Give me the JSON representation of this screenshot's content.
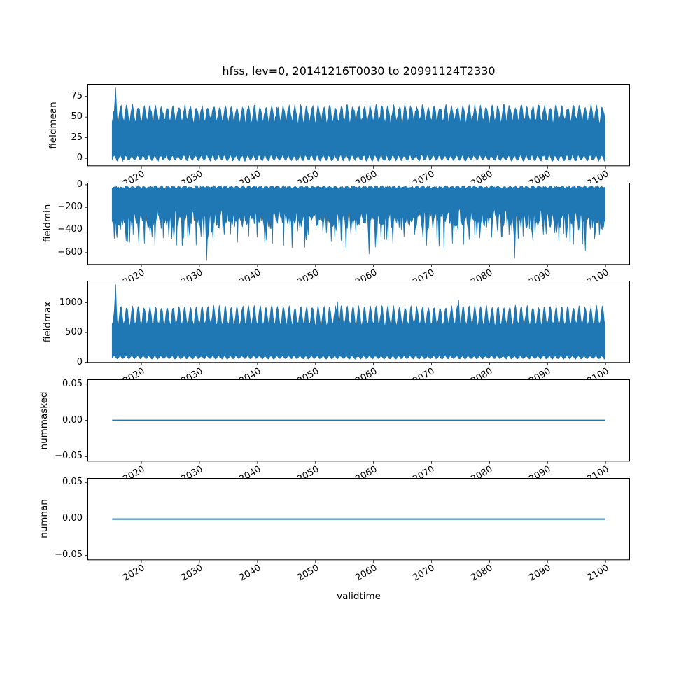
{
  "chart_data": {
    "type": "line",
    "title": "hfss, lev=0, 20141216T0030 to 20991124T2330",
    "xlabel": "validtime",
    "line_color": "#1f77b4",
    "axes_background": "#ffffff",
    "text_color": "#000000",
    "grid": false,
    "legend": false,
    "x_start": 2014.96,
    "x_end": 2099.9,
    "xlim": [
      2010.7,
      2104.2
    ],
    "xticks": [
      2020,
      2030,
      2040,
      2050,
      2060,
      2070,
      2080,
      2090,
      2100
    ],
    "xtick_labels": [
      "2020",
      "2030",
      "2040",
      "2050",
      "2060",
      "2070",
      "2080",
      "2090",
      "2100"
    ],
    "xtick_rotation_deg": 30,
    "subplots": [
      {
        "ylabel": "fieldmean",
        "yticks": [
          {
            "v": 75,
            "label": "75"
          },
          {
            "v": 50,
            "label": "50"
          },
          {
            "v": 25,
            "label": "25"
          },
          {
            "v": 0,
            "label": "0"
          }
        ],
        "ylim": [
          -9.5,
          90
        ],
        "kind": "band",
        "band": {
          "top_valley": 44,
          "top_peak": 63,
          "top_pow": 1.6,
          "top_noise": 3,
          "bot_valley": -2.5,
          "bot_peak": 3.5,
          "bot_pow": 2.2,
          "bot_noise": 1.2,
          "period_years": 1,
          "seed": 11
        },
        "spikes": [
          {
            "x": 2015.6,
            "v": 85.5
          }
        ],
        "summary": "Dense sub-daily oscillation between ~0 and a seasonal envelope of ~44-66; isolated spike to ~85 near the start of the record."
      },
      {
        "ylabel": "fieldmin",
        "yticks": [
          {
            "v": 0,
            "label": "0"
          },
          {
            "v": -200,
            "label": "−200"
          },
          {
            "v": -400,
            "label": "−400"
          },
          {
            "v": -600,
            "label": "−600"
          }
        ],
        "ylim": [
          -708,
          18
        ],
        "kind": "band",
        "band": {
          "top_valley": -32,
          "top_peak": -14,
          "top_pow": 1,
          "top_noise": 8,
          "bot_valley": -250,
          "bot_peak": -345,
          "bot_pow": 1,
          "bot_noise": 55,
          "period_years": 1,
          "seed": 22,
          "spike_prob": 0.2,
          "spike_min": 60,
          "spike_max": 220
        },
        "spikes": [
          {
            "x": 2019.6,
            "v": -520
          },
          {
            "x": 2031.2,
            "v": -672
          },
          {
            "x": 2046.0,
            "v": -560
          },
          {
            "x": 2059.2,
            "v": -615
          },
          {
            "x": 2084.3,
            "v": -652
          },
          {
            "x": 2096.5,
            "v": -585
          }
        ],
        "summary": "Field minimum: solid band from ~-15 down to ~-300 with frequent negative spikes to -400..-550 and occasional extremes near -650..-680."
      },
      {
        "ylabel": "fieldmax",
        "yticks": [
          {
            "v": 1000,
            "label": "1000"
          },
          {
            "v": 500,
            "label": "500"
          },
          {
            "v": 0,
            "label": "0"
          }
        ],
        "ylim": [
          -8,
          1372
        ],
        "kind": "band",
        "band": {
          "top_valley": 640,
          "top_peak": 935,
          "top_pow": 2.4,
          "top_noise": 28,
          "bot_valley": 58,
          "bot_peak": 108,
          "bot_pow": 2.0,
          "bot_noise": 8,
          "period_years": 1,
          "seed": 33
        },
        "spikes": [
          {
            "x": 2015.6,
            "v": 1310
          },
          {
            "x": 2053.8,
            "v": 1020
          },
          {
            "x": 2074.7,
            "v": 1050
          }
        ],
        "summary": "Field maximum: annual comb of peaks ~900-950 over a solid band down to ~60; initial spike to ~1310."
      },
      {
        "ylabel": "nummasked",
        "yticks": [
          {
            "v": 0.05,
            "label": "0.05"
          },
          {
            "v": 0,
            "label": "0.00"
          },
          {
            "v": -0.05,
            "label": "−0.05"
          }
        ],
        "ylim": [
          -0.0565,
          0.0565
        ],
        "kind": "constant",
        "constant": 0,
        "summary": "Number of masked points: constant 0 over the whole period."
      },
      {
        "ylabel": "numnan",
        "yticks": [
          {
            "v": 0.05,
            "label": "0.05"
          },
          {
            "v": 0,
            "label": "0.00"
          },
          {
            "v": -0.05,
            "label": "−0.05"
          }
        ],
        "ylim": [
          -0.0565,
          0.0565
        ],
        "kind": "constant",
        "constant": 0,
        "summary": "Number of NaN points: constant 0 over the whole period."
      }
    ]
  }
}
